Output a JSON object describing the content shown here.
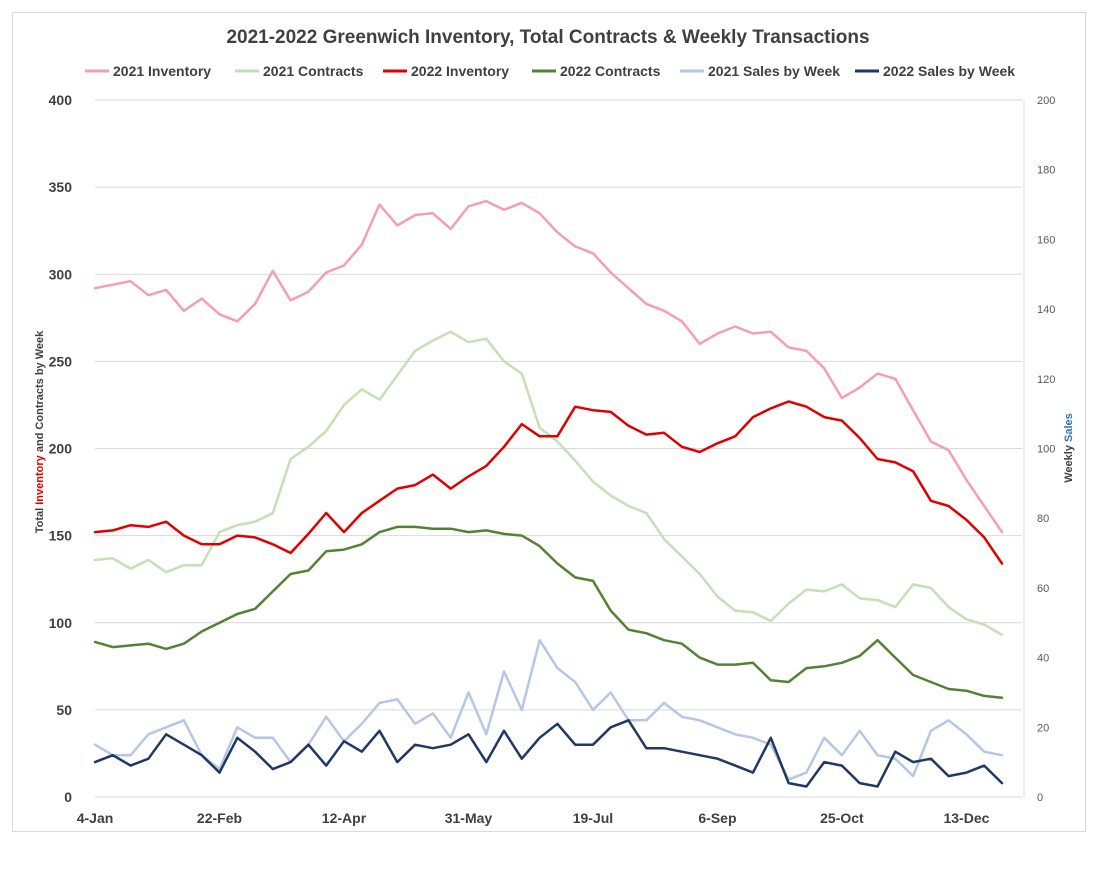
{
  "chart_data": {
    "type": "line",
    "title": "2021-2022 Greenwich Inventory, Total Contracts & Weekly Transactions",
    "ylabel_left_parts": [
      {
        "text": "Total ",
        "color": "#404040"
      },
      {
        "text": "Inventory",
        "color": "#e00000"
      },
      {
        "text": " and Contracts by Week",
        "color": "#404040"
      }
    ],
    "ylabel_right_parts": [
      {
        "text": "Weekly ",
        "color": "#404040"
      },
      {
        "text": "Sales",
        "color": "#2e75b6"
      }
    ],
    "ylim_left": [
      0,
      400
    ],
    "ylim_right": [
      0,
      200
    ],
    "yticks_left": [
      0,
      50,
      100,
      150,
      200,
      250,
      300,
      350,
      400
    ],
    "yticks_right": [
      0,
      20,
      40,
      60,
      80,
      100,
      120,
      140,
      160,
      180,
      200
    ],
    "grid": true,
    "legend_position": "top",
    "x_tick_labels": [
      {
        "index": 0,
        "label": "4-Jan"
      },
      {
        "index": 7,
        "label": "22-Feb"
      },
      {
        "index": 14,
        "label": "12-Apr"
      },
      {
        "index": 21,
        "label": "31-May"
      },
      {
        "index": 28,
        "label": "19-Jul"
      },
      {
        "index": 35,
        "label": "6-Sep"
      },
      {
        "index": 42,
        "label": "25-Oct"
      },
      {
        "index": 49,
        "label": "13-Dec"
      }
    ],
    "series": [
      {
        "name": "2021 Inventory",
        "axis": "left",
        "color": "#f4a0ac",
        "values": [
          292,
          294,
          296,
          288,
          291,
          279,
          286,
          277,
          273,
          283,
          302,
          285,
          290,
          301,
          305,
          317,
          340,
          328,
          334,
          335,
          326,
          339,
          342,
          337,
          341,
          335,
          324,
          316,
          312,
          301,
          292,
          283,
          279,
          273,
          260,
          266,
          270,
          266,
          267,
          258,
          256,
          246,
          229,
          235,
          243,
          240,
          222,
          204,
          199,
          182,
          167,
          152
        ]
      },
      {
        "name": "2021 Contracts",
        "axis": "left",
        "color": "#c5e0b4",
        "values": [
          136,
          137,
          131,
          136,
          129,
          133,
          133,
          152,
          156,
          158,
          163,
          194,
          201,
          210,
          225,
          234,
          228,
          242,
          256,
          262,
          267,
          261,
          263,
          250,
          243,
          212,
          204,
          193,
          181,
          173,
          167,
          163,
          148,
          138,
          128,
          115,
          107,
          106,
          101,
          111,
          119,
          118,
          122,
          114,
          113,
          109,
          122,
          120,
          109,
          102,
          99,
          93
        ]
      },
      {
        "name": "2022 Inventory",
        "axis": "left",
        "color": "#e00000",
        "values": [
          152,
          153,
          156,
          155,
          158,
          150,
          145,
          145,
          150,
          149,
          145,
          140,
          151,
          163,
          152,
          163,
          170,
          177,
          179,
          185,
          177,
          184,
          190,
          201,
          214,
          207,
          207,
          224,
          222,
          221,
          213,
          208,
          209,
          201,
          198,
          203,
          207,
          218,
          223,
          227,
          224,
          218,
          216,
          206,
          194,
          192,
          187,
          170,
          167,
          159,
          149,
          134
        ]
      },
      {
        "name": "2022 Contracts",
        "axis": "left",
        "color": "#548235",
        "values": [
          89,
          86,
          87,
          88,
          85,
          88,
          95,
          100,
          105,
          108,
          118,
          128,
          130,
          141,
          142,
          145,
          152,
          155,
          155,
          154,
          154,
          152,
          153,
          151,
          150,
          144,
          134,
          126,
          124,
          107,
          96,
          94,
          90,
          88,
          80,
          76,
          76,
          77,
          67,
          66,
          74,
          75,
          77,
          81,
          90,
          80,
          70,
          66,
          62,
          61,
          58,
          57
        ]
      },
      {
        "name": "2021 Sales by Week",
        "axis": "right",
        "color": "#b4c7e7",
        "values": [
          15,
          12,
          12,
          18,
          20,
          22,
          12,
          8,
          20,
          17,
          17,
          10,
          15,
          23,
          16,
          21,
          27,
          28,
          21,
          24,
          17,
          30,
          18,
          36,
          25,
          45,
          37,
          33,
          25,
          30,
          22,
          22,
          27,
          23,
          22,
          20,
          18,
          17,
          15,
          5,
          7,
          17,
          12,
          19,
          12,
          11,
          6,
          19,
          22,
          18,
          13,
          12
        ]
      },
      {
        "name": "2022 Sales by Week",
        "axis": "right",
        "color": "#203864",
        "values": [
          10,
          12,
          9,
          11,
          18,
          15,
          12,
          7,
          17,
          13,
          8,
          10,
          15,
          9,
          16,
          13,
          19,
          10,
          15,
          14,
          15,
          18,
          10,
          19,
          11,
          17,
          21,
          15,
          15,
          20,
          22,
          14,
          14,
          13,
          12,
          11,
          9,
          7,
          17,
          4,
          3,
          10,
          9,
          4,
          3,
          13,
          10,
          11,
          6,
          7,
          9,
          4
        ]
      }
    ]
  }
}
